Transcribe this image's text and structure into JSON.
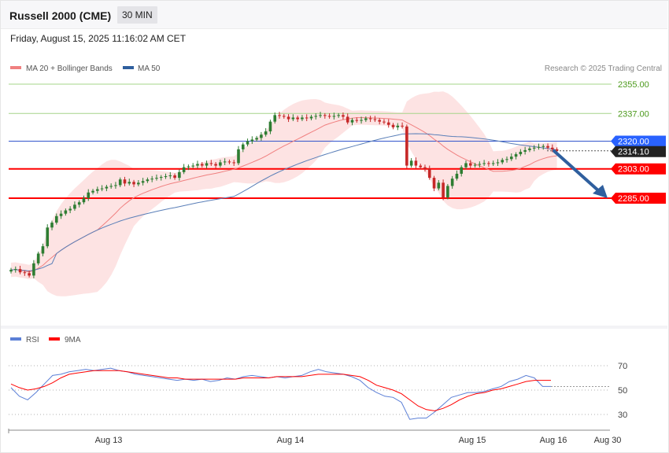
{
  "header": {
    "title": "Russell 2000 (CME)",
    "timeframe": "30 MIN"
  },
  "timestamp": "Friday, August 15, 2025 11:16:02 AM CET",
  "legend": {
    "ma20": "MA 20 + Bollinger Bands",
    "ma50": "MA 50"
  },
  "credit": "Research © 2025 Trading Central",
  "colors": {
    "bull": "#2e7d32",
    "bear": "#c62828",
    "ma20": "#f08080",
    "ma50": "#5a7fb8",
    "bollinger_fill": "#fde0e0",
    "resistance": "#a5d48a",
    "support": "#ff0000",
    "current": "#3355cc",
    "arrow": "#2f5f9e",
    "rsi": "#5b7fd6",
    "rsi_ma": "#ff0000"
  },
  "chart_data": [
    {
      "type": "candlestick",
      "ylim": [
        2215,
        2380
      ],
      "x_labels": [
        "Aug 13",
        "Aug 14",
        "Aug 15",
        "Aug 16",
        "Aug 30"
      ],
      "levels": [
        {
          "value": 2355.0,
          "label": "2355.00",
          "kind": "resistance"
        },
        {
          "value": 2337.0,
          "label": "2337.00",
          "kind": "resistance"
        },
        {
          "value": 2320.0,
          "label": "2320.00",
          "kind": "current"
        },
        {
          "value": 2314.1,
          "label": "2314.10",
          "kind": "last"
        },
        {
          "value": 2303.0,
          "label": "2303.00",
          "kind": "support"
        },
        {
          "value": 2285.0,
          "label": "2285.00",
          "kind": "support"
        }
      ],
      "close": [
        2241.0,
        2241.5,
        2239.5,
        2239.0,
        2237.5,
        2245.0,
        2251.0,
        2255.5,
        2267.0,
        2270.0,
        2274.0,
        2275.5,
        2277.5,
        2278.5,
        2281.0,
        2282.5,
        2285.0,
        2288.5,
        2289.5,
        2290.5,
        2291.0,
        2292.0,
        2292.5,
        2293.0,
        2296.5,
        2294.0,
        2295.0,
        2293.5,
        2294.5,
        2295.5,
        2296.5,
        2297.0,
        2297.5,
        2298.0,
        2298.5,
        2299.0,
        2297.5,
        2301.0,
        2304.0,
        2304.5,
        2305.0,
        2306.0,
        2305.0,
        2306.5,
        2306.0,
        2305.0,
        2307.0,
        2307.5,
        2307.0,
        2306.5,
        2315.0,
        2318.0,
        2320.0,
        2321.0,
        2322.0,
        2324.0,
        2326.0,
        2332.0,
        2336.0,
        2335.5,
        2335.0,
        2333.5,
        2334.5,
        2333.5,
        2334.5,
        2334.0,
        2335.0,
        2335.5,
        2336.0,
        2335.5,
        2335.0,
        2335.5,
        2336.0,
        2335.0,
        2331.5,
        2333.0,
        2332.5,
        2333.0,
        2334.0,
        2333.5,
        2333.0,
        2332.0,
        2331.5,
        2330.0,
        2328.5,
        2329.5,
        2329.0,
        2305.0,
        2308.0,
        2305.0,
        2304.0,
        2303.0,
        2297.5,
        2291.0,
        2294.5,
        2285.5,
        2292.5,
        2297.0,
        2300.0,
        2304.0,
        2306.5,
        2305.0,
        2305.5,
        2306.0,
        2306.5,
        2306.0,
        2306.5,
        2307.0,
        2308.5,
        2309.0,
        2310.5,
        2312.0,
        2313.5,
        2314.5,
        2315.5,
        2316.0,
        2316.5,
        2317.0,
        2316.0,
        2315.0,
        2314.1
      ],
      "series": [
        {
          "name": "MA 20 + Bollinger Bands"
        },
        {
          "name": "MA 50"
        }
      ]
    },
    {
      "type": "line",
      "ylim": [
        20,
        80
      ],
      "y_ticks": [
        30,
        50,
        70
      ],
      "legend": [
        "RSI",
        "9MA"
      ],
      "series": [
        {
          "name": "RSI",
          "values": [
            52,
            45,
            42,
            48,
            55,
            62,
            63,
            65,
            66,
            67,
            66,
            67,
            68,
            66,
            65,
            63,
            62,
            61,
            60,
            59,
            58,
            59,
            58,
            59,
            57,
            58,
            60,
            59,
            61,
            62,
            61,
            60,
            61,
            60,
            61,
            62,
            65,
            67,
            65,
            64,
            63,
            61,
            58,
            52,
            48,
            45,
            44,
            40,
            26,
            27,
            27,
            32,
            38,
            44,
            46,
            48,
            48,
            49,
            51,
            53,
            57,
            59,
            62,
            60,
            53,
            53
          ]
        },
        {
          "name": "9MA",
          "values": [
            55,
            52,
            50,
            51,
            53,
            56,
            60,
            63,
            64,
            65,
            66,
            66,
            66,
            66,
            65,
            64,
            63,
            62,
            61,
            60,
            60,
            59,
            59,
            59,
            59,
            59,
            59,
            59,
            60,
            60,
            60,
            60,
            61,
            61,
            61,
            61,
            62,
            63,
            63,
            63,
            63,
            62,
            61,
            58,
            54,
            52,
            50,
            47,
            42,
            37,
            34,
            33,
            35,
            38,
            42,
            45,
            47,
            48,
            50,
            51,
            53,
            55,
            57,
            58,
            58,
            58
          ]
        }
      ]
    }
  ]
}
